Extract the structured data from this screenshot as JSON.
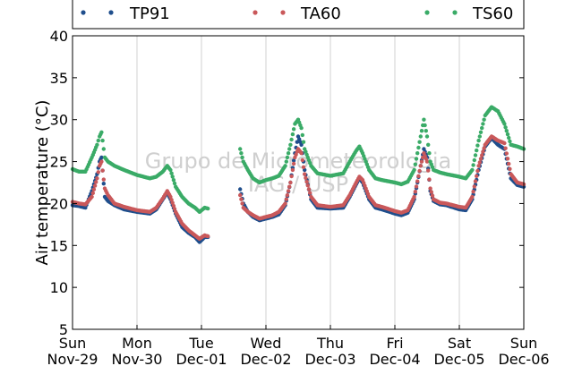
{
  "chart_data": {
    "type": "scatter",
    "title": "",
    "xlabel": "",
    "ylabel": "Air temperature (°C)",
    "ylim": [
      5,
      40
    ],
    "yticks": [
      5,
      10,
      15,
      20,
      25,
      30,
      35,
      40
    ],
    "xlim": [
      0,
      7
    ],
    "xticks": [
      {
        "x": 0,
        "day": "Sun",
        "date": "Nov-29"
      },
      {
        "x": 1,
        "day": "Mon",
        "date": "Nov-30"
      },
      {
        "x": 2,
        "day": "Tue",
        "date": "Dec-01"
      },
      {
        "x": 3,
        "day": "Wed",
        "date": "Dec-02"
      },
      {
        "x": 4,
        "day": "Thu",
        "date": "Dec-03"
      },
      {
        "x": 5,
        "day": "Fri",
        "date": "Dec-04"
      },
      {
        "x": 6,
        "day": "Sat",
        "date": "Dec-05"
      },
      {
        "x": 7,
        "day": "Sun",
        "date": "Dec-06"
      }
    ],
    "grid": "vertical",
    "legend_position": "top",
    "watermark": [
      "Grupo de Micrometeorologia",
      "IAG / USP"
    ],
    "series": [
      {
        "name": "TP91",
        "color": "#1f4e8c",
        "segments": [
          [
            [
              0.0,
              19.8
            ],
            [
              0.1,
              19.7
            ],
            [
              0.2,
              19.5
            ],
            [
              0.3,
              21.5
            ],
            [
              0.38,
              23.5
            ],
            [
              0.42,
              25.0
            ],
            [
              0.45,
              25.5
            ],
            [
              0.5,
              20.8
            ],
            [
              0.55,
              20.3
            ],
            [
              0.65,
              19.8
            ],
            [
              0.8,
              19.3
            ],
            [
              1.0,
              19.0
            ],
            [
              1.1,
              18.9
            ],
            [
              1.2,
              18.8
            ],
            [
              1.3,
              19.3
            ],
            [
              1.4,
              20.5
            ],
            [
              1.47,
              21.3
            ],
            [
              1.52,
              20.5
            ],
            [
              1.6,
              18.8
            ],
            [
              1.7,
              17.2
            ],
            [
              1.8,
              16.5
            ],
            [
              1.9,
              16.0
            ],
            [
              1.97,
              15.4
            ],
            [
              2.05,
              16.0
            ],
            [
              2.1,
              16.0
            ]
          ],
          [
            [
              2.6,
              21.7
            ],
            [
              2.65,
              20.0
            ],
            [
              2.72,
              19.0
            ],
            [
              2.8,
              18.4
            ],
            [
              2.9,
              18.0
            ],
            [
              3.0,
              18.2
            ],
            [
              3.1,
              18.4
            ],
            [
              3.2,
              18.7
            ],
            [
              3.3,
              19.8
            ],
            [
              3.38,
              22.5
            ],
            [
              3.45,
              26.0
            ],
            [
              3.5,
              28.0
            ],
            [
              3.55,
              27.0
            ],
            [
              3.6,
              24.0
            ],
            [
              3.7,
              20.5
            ],
            [
              3.8,
              19.5
            ],
            [
              4.0,
              19.4
            ],
            [
              4.2,
              19.5
            ],
            [
              4.3,
              20.8
            ],
            [
              4.4,
              22.3
            ],
            [
              4.45,
              23.0
            ],
            [
              4.5,
              22.5
            ],
            [
              4.6,
              20.5
            ],
            [
              4.7,
              19.5
            ],
            [
              4.8,
              19.3
            ],
            [
              5.0,
              18.8
            ],
            [
              5.1,
              18.6
            ],
            [
              5.2,
              18.9
            ],
            [
              5.3,
              20.5
            ],
            [
              5.4,
              24.5
            ],
            [
              5.45,
              26.5
            ],
            [
              5.5,
              25.5
            ],
            [
              5.55,
              21.5
            ],
            [
              5.6,
              20.3
            ],
            [
              5.7,
              19.9
            ],
            [
              5.8,
              19.8
            ],
            [
              6.0,
              19.3
            ],
            [
              6.1,
              19.2
            ],
            [
              6.2,
              20.5
            ],
            [
              6.3,
              24.0
            ],
            [
              6.4,
              26.8
            ],
            [
              6.5,
              27.8
            ],
            [
              6.6,
              27.0
            ],
            [
              6.7,
              26.5
            ],
            [
              6.8,
              23.0
            ],
            [
              6.9,
              22.2
            ],
            [
              7.0,
              22.0
            ]
          ]
        ]
      },
      {
        "name": "TA60",
        "color": "#c9585a",
        "segments": [
          [
            [
              0.0,
              20.2
            ],
            [
              0.1,
              20.0
            ],
            [
              0.2,
              19.9
            ],
            [
              0.3,
              20.8
            ],
            [
              0.38,
              23.0
            ],
            [
              0.42,
              24.5
            ],
            [
              0.45,
              25.0
            ],
            [
              0.5,
              21.8
            ],
            [
              0.55,
              21.0
            ],
            [
              0.65,
              20.0
            ],
            [
              0.8,
              19.6
            ],
            [
              1.0,
              19.2
            ],
            [
              1.1,
              19.1
            ],
            [
              1.2,
              19.0
            ],
            [
              1.3,
              19.5
            ],
            [
              1.4,
              20.6
            ],
            [
              1.47,
              21.5
            ],
            [
              1.52,
              20.8
            ],
            [
              1.6,
              19.0
            ],
            [
              1.7,
              17.6
            ],
            [
              1.8,
              16.8
            ],
            [
              1.9,
              16.2
            ],
            [
              1.97,
              15.8
            ],
            [
              2.05,
              16.2
            ],
            [
              2.1,
              16.1
            ]
          ],
          [
            [
              2.6,
              21.0
            ],
            [
              2.65,
              19.5
            ],
            [
              2.72,
              19.0
            ],
            [
              2.8,
              18.6
            ],
            [
              2.9,
              18.2
            ],
            [
              3.0,
              18.4
            ],
            [
              3.1,
              18.6
            ],
            [
              3.2,
              19.0
            ],
            [
              3.3,
              20.0
            ],
            [
              3.38,
              22.5
            ],
            [
              3.45,
              25.5
            ],
            [
              3.5,
              26.5
            ],
            [
              3.55,
              26.0
            ],
            [
              3.6,
              23.5
            ],
            [
              3.7,
              20.8
            ],
            [
              3.8,
              19.8
            ],
            [
              4.0,
              19.6
            ],
            [
              4.2,
              19.8
            ],
            [
              4.3,
              21.0
            ],
            [
              4.4,
              22.5
            ],
            [
              4.45,
              23.2
            ],
            [
              4.5,
              22.8
            ],
            [
              4.6,
              20.8
            ],
            [
              4.7,
              19.8
            ],
            [
              4.8,
              19.6
            ],
            [
              5.0,
              19.1
            ],
            [
              5.1,
              18.9
            ],
            [
              5.2,
              19.2
            ],
            [
              5.3,
              20.8
            ],
            [
              5.4,
              24.5
            ],
            [
              5.45,
              26.0
            ],
            [
              5.5,
              25.0
            ],
            [
              5.55,
              21.8
            ],
            [
              5.6,
              20.5
            ],
            [
              5.7,
              20.1
            ],
            [
              5.8,
              20.0
            ],
            [
              6.0,
              19.6
            ],
            [
              6.1,
              19.5
            ],
            [
              6.2,
              20.8
            ],
            [
              6.3,
              24.5
            ],
            [
              6.4,
              27.0
            ],
            [
              6.5,
              28.0
            ],
            [
              6.6,
              27.5
            ],
            [
              6.7,
              27.2
            ],
            [
              6.8,
              23.5
            ],
            [
              6.9,
              22.5
            ],
            [
              7.0,
              22.3
            ]
          ]
        ]
      },
      {
        "name": "TS60",
        "color": "#3aab67",
        "segments": [
          [
            [
              0.0,
              24.1
            ],
            [
              0.1,
              23.8
            ],
            [
              0.2,
              23.8
            ],
            [
              0.3,
              25.5
            ],
            [
              0.38,
              27.0
            ],
            [
              0.42,
              28.0
            ],
            [
              0.45,
              28.5
            ],
            [
              0.5,
              25.5
            ],
            [
              0.55,
              25.0
            ],
            [
              0.65,
              24.5
            ],
            [
              0.8,
              24.0
            ],
            [
              1.0,
              23.4
            ],
            [
              1.1,
              23.2
            ],
            [
              1.2,
              23.0
            ],
            [
              1.3,
              23.2
            ],
            [
              1.4,
              23.8
            ],
            [
              1.47,
              24.5
            ],
            [
              1.52,
              24.0
            ],
            [
              1.6,
              22.0
            ],
            [
              1.7,
              20.8
            ],
            [
              1.8,
              20.0
            ],
            [
              1.9,
              19.5
            ],
            [
              1.97,
              19.0
            ],
            [
              2.05,
              19.5
            ],
            [
              2.1,
              19.4
            ]
          ],
          [
            [
              2.6,
              26.5
            ],
            [
              2.65,
              25.0
            ],
            [
              2.72,
              24.0
            ],
            [
              2.8,
              23.0
            ],
            [
              2.9,
              22.5
            ],
            [
              3.0,
              22.8
            ],
            [
              3.1,
              23.0
            ],
            [
              3.2,
              23.3
            ],
            [
              3.3,
              24.5
            ],
            [
              3.38,
              27.0
            ],
            [
              3.45,
              29.5
            ],
            [
              3.5,
              30.0
            ],
            [
              3.55,
              29.0
            ],
            [
              3.6,
              26.5
            ],
            [
              3.7,
              24.5
            ],
            [
              3.8,
              23.6
            ],
            [
              4.0,
              23.3
            ],
            [
              4.2,
              23.6
            ],
            [
              4.3,
              25.0
            ],
            [
              4.4,
              26.3
            ],
            [
              4.45,
              26.8
            ],
            [
              4.5,
              26.0
            ],
            [
              4.6,
              24.0
            ],
            [
              4.7,
              23.0
            ],
            [
              4.8,
              22.8
            ],
            [
              5.0,
              22.5
            ],
            [
              5.1,
              22.3
            ],
            [
              5.2,
              22.6
            ],
            [
              5.3,
              24.0
            ],
            [
              5.4,
              28.0
            ],
            [
              5.45,
              30.0
            ],
            [
              5.5,
              28.0
            ],
            [
              5.55,
              25.0
            ],
            [
              5.6,
              24.0
            ],
            [
              5.7,
              23.7
            ],
            [
              5.8,
              23.5
            ],
            [
              6.0,
              23.2
            ],
            [
              6.1,
              23.0
            ],
            [
              6.2,
              24.0
            ],
            [
              6.3,
              27.5
            ],
            [
              6.4,
              30.5
            ],
            [
              6.5,
              31.5
            ],
            [
              6.6,
              31.0
            ],
            [
              6.7,
              29.5
            ],
            [
              6.8,
              27.0
            ],
            [
              6.9,
              26.8
            ],
            [
              7.0,
              26.5
            ]
          ]
        ]
      }
    ]
  }
}
